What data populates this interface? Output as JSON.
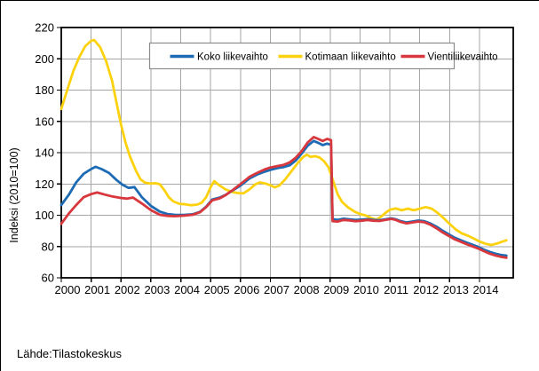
{
  "source_text": "Lähde:Tilastokeskus",
  "colors": {
    "background": "#ffffff",
    "grid": "#a6a6a6",
    "axis": "#000000",
    "legend_border": "#8c8c8c",
    "series_blue": "#1c6bb4",
    "series_yellow": "#fcd20f",
    "series_red": "#d8383d"
  },
  "legend": {
    "position": "top-center-inside",
    "items": [
      "Koko liikevaihto",
      "Kotimaan liikevaihto",
      "Vientiliikevaihto"
    ]
  },
  "chart_data": {
    "type": "line",
    "title": "",
    "xlabel": "",
    "ylabel": "Indeksi (2010=100)",
    "ylim": [
      60,
      220
    ],
    "ytick_labels": [
      "60",
      "80",
      "100",
      "120",
      "140",
      "160",
      "180",
      "200",
      "220"
    ],
    "xlim": [
      2000,
      2015.13
    ],
    "xtick_labels": [
      "2000",
      "2001",
      "2002",
      "2003",
      "2004",
      "2005",
      "2006",
      "2007",
      "2008",
      "2009",
      "2010",
      "2011",
      "2012",
      "2013",
      "2014"
    ],
    "grid": true,
    "series": [
      {
        "name": "Koko liikevaihto",
        "color": "#1c6bb4",
        "points": [
          [
            2000.0,
            106.5
          ],
          [
            2000.25,
            113
          ],
          [
            2000.5,
            121
          ],
          [
            2000.75,
            126.5
          ],
          [
            2001.0,
            129.5
          ],
          [
            2001.15,
            131
          ],
          [
            2001.35,
            129.5
          ],
          [
            2001.6,
            127
          ],
          [
            2001.85,
            122.5
          ],
          [
            2002.05,
            119.5
          ],
          [
            2002.25,
            117.5
          ],
          [
            2002.45,
            118
          ],
          [
            2002.7,
            111.5
          ],
          [
            2003.0,
            106
          ],
          [
            2003.3,
            102.3
          ],
          [
            2003.55,
            100.8
          ],
          [
            2003.8,
            100.3
          ],
          [
            2004.1,
            100.2
          ],
          [
            2004.4,
            100.6
          ],
          [
            2004.65,
            102.2
          ],
          [
            2004.85,
            105.5
          ],
          [
            2005.05,
            110
          ],
          [
            2005.3,
            111.3
          ],
          [
            2005.5,
            113
          ],
          [
            2005.75,
            116
          ],
          [
            2006.0,
            119
          ],
          [
            2006.3,
            123.5
          ],
          [
            2006.55,
            126
          ],
          [
            2006.8,
            127.8
          ],
          [
            2007.0,
            129
          ],
          [
            2007.25,
            130.2
          ],
          [
            2007.45,
            130.8
          ],
          [
            2007.65,
            132
          ],
          [
            2007.85,
            135
          ],
          [
            2008.05,
            139.5
          ],
          [
            2008.25,
            144.5
          ],
          [
            2008.45,
            147.5
          ],
          [
            2008.6,
            146.3
          ],
          [
            2008.75,
            144.8
          ],
          [
            2008.9,
            145.8
          ],
          [
            2009.03,
            145
          ],
          [
            2009.08,
            97.5
          ],
          [
            2009.25,
            97
          ],
          [
            2009.45,
            97.8
          ],
          [
            2009.65,
            97.4
          ],
          [
            2009.85,
            97
          ],
          [
            2010.05,
            97.2
          ],
          [
            2010.25,
            97.5
          ],
          [
            2010.45,
            97
          ],
          [
            2010.65,
            96.8
          ],
          [
            2010.85,
            97.4
          ],
          [
            2011.05,
            98
          ],
          [
            2011.2,
            97.4
          ],
          [
            2011.35,
            96.3
          ],
          [
            2011.55,
            95.4
          ],
          [
            2011.75,
            96
          ],
          [
            2011.95,
            96.6
          ],
          [
            2012.15,
            96.2
          ],
          [
            2012.35,
            94.8
          ],
          [
            2012.55,
            92.8
          ],
          [
            2012.75,
            90.3
          ],
          [
            2012.95,
            88
          ],
          [
            2013.15,
            85.8
          ],
          [
            2013.35,
            84.2
          ],
          [
            2013.55,
            82.7
          ],
          [
            2013.75,
            81.2
          ],
          [
            2013.95,
            79.8
          ],
          [
            2014.15,
            78
          ],
          [
            2014.35,
            76.5
          ],
          [
            2014.55,
            75.3
          ],
          [
            2014.7,
            74.7
          ],
          [
            2014.9,
            74.2
          ]
        ]
      },
      {
        "name": "Kotimaan liikevaihto",
        "color": "#fcd20f",
        "points": [
          [
            2000.0,
            168
          ],
          [
            2000.2,
            180
          ],
          [
            2000.4,
            192
          ],
          [
            2000.6,
            201
          ],
          [
            2000.8,
            208
          ],
          [
            2001.0,
            211.5
          ],
          [
            2001.1,
            212
          ],
          [
            2001.3,
            207.5
          ],
          [
            2001.5,
            198.5
          ],
          [
            2001.7,
            186
          ],
          [
            2001.85,
            172
          ],
          [
            2002.0,
            158
          ],
          [
            2002.15,
            146.5
          ],
          [
            2002.3,
            137.5
          ],
          [
            2002.5,
            128.5
          ],
          [
            2002.65,
            123
          ],
          [
            2002.8,
            120.8
          ],
          [
            2003.0,
            120.2
          ],
          [
            2003.15,
            120.5
          ],
          [
            2003.3,
            119.8
          ],
          [
            2003.45,
            116
          ],
          [
            2003.6,
            111.5
          ],
          [
            2003.75,
            108.8
          ],
          [
            2003.95,
            107.3
          ],
          [
            2004.15,
            107
          ],
          [
            2004.35,
            106.4
          ],
          [
            2004.55,
            106.8
          ],
          [
            2004.7,
            108
          ],
          [
            2004.85,
            111.5
          ],
          [
            2005.0,
            118
          ],
          [
            2005.12,
            121.8
          ],
          [
            2005.3,
            119
          ],
          [
            2005.5,
            116.5
          ],
          [
            2005.7,
            115
          ],
          [
            2005.9,
            114.2
          ],
          [
            2006.1,
            114
          ],
          [
            2006.3,
            116.5
          ],
          [
            2006.5,
            119.8
          ],
          [
            2006.65,
            121
          ],
          [
            2006.85,
            120.2
          ],
          [
            2007.0,
            119.2
          ],
          [
            2007.15,
            117.8
          ],
          [
            2007.3,
            119
          ],
          [
            2007.5,
            123
          ],
          [
            2007.7,
            128
          ],
          [
            2007.9,
            133
          ],
          [
            2008.1,
            137.3
          ],
          [
            2008.22,
            138.7
          ],
          [
            2008.35,
            137.3
          ],
          [
            2008.5,
            137.8
          ],
          [
            2008.65,
            136.8
          ],
          [
            2008.8,
            134.5
          ],
          [
            2008.95,
            130.5
          ],
          [
            2009.1,
            122
          ],
          [
            2009.25,
            113.5
          ],
          [
            2009.4,
            108.5
          ],
          [
            2009.6,
            105
          ],
          [
            2009.8,
            102.5
          ],
          [
            2010.0,
            100.8
          ],
          [
            2010.2,
            99.8
          ],
          [
            2010.4,
            98
          ],
          [
            2010.55,
            97.2
          ],
          [
            2010.7,
            99
          ],
          [
            2010.85,
            101.5
          ],
          [
            2011.0,
            103.5
          ],
          [
            2011.2,
            104.3
          ],
          [
            2011.4,
            103.2
          ],
          [
            2011.6,
            104.2
          ],
          [
            2011.8,
            103.2
          ],
          [
            2012.0,
            104.2
          ],
          [
            2012.2,
            105.2
          ],
          [
            2012.4,
            104.2
          ],
          [
            2012.6,
            101.5
          ],
          [
            2012.8,
            98.2
          ],
          [
            2013.0,
            94.5
          ],
          [
            2013.2,
            91
          ],
          [
            2013.4,
            88.5
          ],
          [
            2013.6,
            87
          ],
          [
            2013.8,
            85.2
          ],
          [
            2014.0,
            83.2
          ],
          [
            2014.2,
            81.8
          ],
          [
            2014.4,
            81
          ],
          [
            2014.6,
            82
          ],
          [
            2014.9,
            84
          ]
        ]
      },
      {
        "name": "Vientiliikevaihto",
        "color": "#d8383d",
        "points": [
          [
            2000.0,
            94.5
          ],
          [
            2000.25,
            101
          ],
          [
            2000.5,
            106.5
          ],
          [
            2000.75,
            111.5
          ],
          [
            2001.0,
            113.5
          ],
          [
            2001.2,
            114.5
          ],
          [
            2001.45,
            113.2
          ],
          [
            2001.7,
            112
          ],
          [
            2001.95,
            111.2
          ],
          [
            2002.2,
            110.6
          ],
          [
            2002.4,
            111.3
          ],
          [
            2002.7,
            107.5
          ],
          [
            2003.0,
            103.3
          ],
          [
            2003.3,
            100.3
          ],
          [
            2003.55,
            99.6
          ],
          [
            2003.8,
            99.4
          ],
          [
            2004.1,
            99.7
          ],
          [
            2004.4,
            100.3
          ],
          [
            2004.65,
            102
          ],
          [
            2004.85,
            105.2
          ],
          [
            2005.05,
            109.5
          ],
          [
            2005.3,
            110.8
          ],
          [
            2005.5,
            112.8
          ],
          [
            2005.75,
            116.2
          ],
          [
            2006.0,
            120
          ],
          [
            2006.3,
            124.5
          ],
          [
            2006.55,
            127
          ],
          [
            2006.8,
            129.2
          ],
          [
            2007.0,
            130.5
          ],
          [
            2007.25,
            131.5
          ],
          [
            2007.45,
            132.2
          ],
          [
            2007.65,
            133.8
          ],
          [
            2007.85,
            136.8
          ],
          [
            2008.05,
            141
          ],
          [
            2008.25,
            146.5
          ],
          [
            2008.45,
            150
          ],
          [
            2008.6,
            148.8
          ],
          [
            2008.75,
            147.5
          ],
          [
            2008.9,
            148.8
          ],
          [
            2009.03,
            148
          ],
          [
            2009.08,
            96.2
          ],
          [
            2009.25,
            96
          ],
          [
            2009.45,
            97
          ],
          [
            2009.65,
            96.7
          ],
          [
            2009.85,
            96.2
          ],
          [
            2010.05,
            96.5
          ],
          [
            2010.25,
            97
          ],
          [
            2010.45,
            96.5
          ],
          [
            2010.65,
            96.3
          ],
          [
            2010.85,
            97
          ],
          [
            2011.05,
            97.7
          ],
          [
            2011.2,
            97
          ],
          [
            2011.35,
            95.8
          ],
          [
            2011.55,
            94.8
          ],
          [
            2011.75,
            95.4
          ],
          [
            2011.95,
            96
          ],
          [
            2012.15,
            95.6
          ],
          [
            2012.35,
            94
          ],
          [
            2012.55,
            91.8
          ],
          [
            2012.75,
            89.2
          ],
          [
            2012.95,
            87
          ],
          [
            2013.15,
            84.8
          ],
          [
            2013.35,
            83.2
          ],
          [
            2013.55,
            81.7
          ],
          [
            2013.75,
            80.2
          ],
          [
            2013.95,
            78.8
          ],
          [
            2014.15,
            77
          ],
          [
            2014.35,
            75.4
          ],
          [
            2014.55,
            74.2
          ],
          [
            2014.7,
            73.5
          ],
          [
            2014.9,
            72.8
          ]
        ]
      }
    ]
  }
}
